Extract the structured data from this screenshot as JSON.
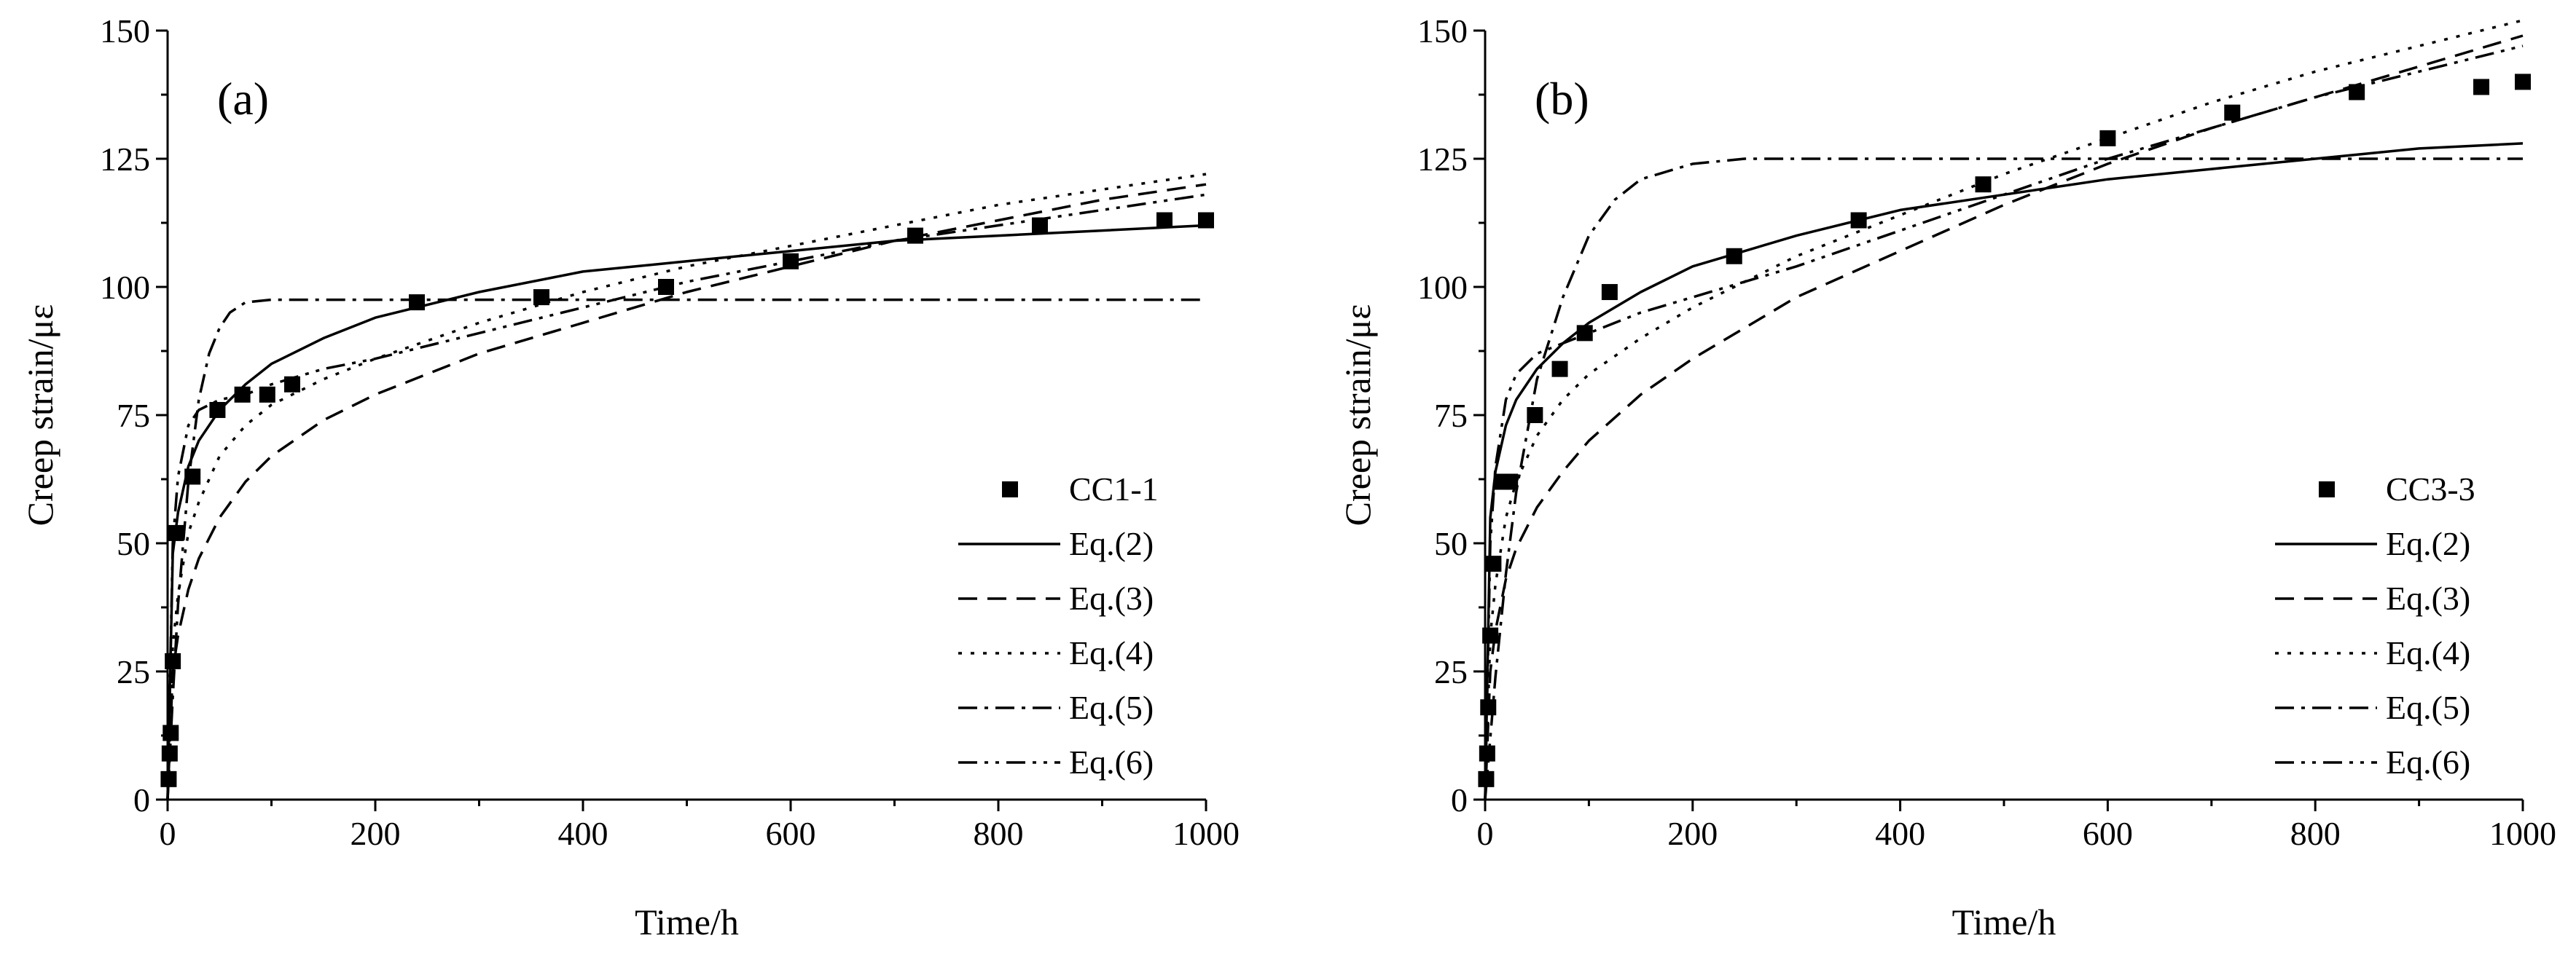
{
  "figure": {
    "description_free": true
  },
  "chart_data": [
    {
      "type": "scatter",
      "panel_label": "(a)",
      "xlabel": "Time/h",
      "ylabel": "Creep strain/με",
      "xlim": [
        0,
        1000
      ],
      "ylim": [
        0,
        150
      ],
      "xticks": [
        "0",
        "200",
        "400",
        "600",
        "800",
        "1000"
      ],
      "yticks": [
        "0",
        "25",
        "50",
        "75",
        "100",
        "125",
        "150"
      ],
      "legend_position": "bottom-right",
      "grid": false,
      "points": {
        "name": "CC1-1",
        "x": [
          1,
          2,
          3,
          5,
          8,
          24,
          48,
          72,
          96,
          120,
          240,
          360,
          480,
          600,
          720,
          840,
          960,
          1000
        ],
        "y": [
          4,
          9,
          13,
          27,
          52,
          63,
          76,
          79,
          79,
          81,
          97,
          98,
          100,
          105,
          110,
          112,
          113,
          113
        ]
      },
      "series": [
        {
          "name": "Eq.(2)",
          "style": "solid",
          "x": [
            0,
            5,
            10,
            20,
            30,
            50,
            75,
            100,
            150,
            200,
            300,
            400,
            500,
            600,
            700,
            800,
            900,
            1000
          ],
          "y": [
            0,
            48,
            56,
            65,
            70,
            76,
            81,
            85,
            90,
            94,
            99,
            103,
            105,
            107,
            109,
            110,
            111,
            112
          ]
        },
        {
          "name": "Eq.(3)",
          "style": "dashed",
          "x": [
            0,
            5,
            10,
            20,
            30,
            50,
            75,
            100,
            150,
            200,
            300,
            400,
            500,
            600,
            700,
            800,
            900,
            1000
          ],
          "y": [
            0,
            25,
            32,
            41,
            47,
            55,
            62,
            67,
            74,
            79,
            87,
            93,
            99,
            104,
            109,
            113,
            117,
            120
          ]
        },
        {
          "name": "Eq.(4)",
          "style": "dotted",
          "x": [
            0,
            5,
            10,
            20,
            30,
            50,
            75,
            100,
            150,
            200,
            300,
            400,
            500,
            600,
            700,
            800,
            900,
            1000
          ],
          "y": [
            0,
            30,
            40,
            52,
            58,
            67,
            73,
            77,
            82,
            86,
            93,
            99,
            104,
            108,
            112,
            116,
            119,
            122
          ]
        },
        {
          "name": "Eq.(5)",
          "style": "dash-dot",
          "x": [
            0,
            5,
            10,
            20,
            30,
            40,
            50,
            60,
            75,
            100,
            150,
            200,
            300,
            400,
            600,
            800,
            1000
          ],
          "y": [
            0,
            20,
            38,
            62,
            78,
            87,
            92,
            95,
            97,
            97.5,
            97.5,
            97.5,
            97.5,
            97.5,
            97.5,
            97.5,
            97.5
          ]
        },
        {
          "name": "Eq.(6)",
          "style": "dash-dot-dot",
          "x": [
            0,
            5,
            10,
            20,
            30,
            50,
            75,
            100,
            150,
            200,
            300,
            400,
            500,
            600,
            700,
            800,
            900,
            1000
          ],
          "y": [
            0,
            50,
            63,
            73,
            76,
            78,
            79,
            81,
            84,
            86,
            91,
            96,
            101,
            105,
            109,
            112,
            115,
            118
          ]
        }
      ]
    },
    {
      "type": "scatter",
      "panel_label": "(b)",
      "xlabel": "Time/h",
      "ylabel": "Creep strain/με",
      "xlim": [
        0,
        1000
      ],
      "ylim": [
        0,
        150
      ],
      "xticks": [
        "0",
        "200",
        "400",
        "600",
        "800",
        "1000"
      ],
      "yticks": [
        "0",
        "25",
        "50",
        "75",
        "100",
        "125",
        "150"
      ],
      "legend_position": "bottom-right",
      "grid": false,
      "points": {
        "name": "CC3-3",
        "x": [
          1,
          2,
          3,
          5,
          8,
          16,
          24,
          48,
          72,
          96,
          120,
          240,
          360,
          480,
          600,
          720,
          840,
          960,
          1000
        ],
        "y": [
          4,
          9,
          18,
          32,
          46,
          62,
          62,
          75,
          84,
          91,
          99,
          106,
          113,
          120,
          129,
          134,
          138,
          139,
          140
        ]
      },
      "series": [
        {
          "name": "Eq.(2)",
          "style": "solid",
          "x": [
            0,
            5,
            10,
            20,
            30,
            50,
            75,
            100,
            150,
            200,
            300,
            400,
            500,
            600,
            700,
            800,
            900,
            1000
          ],
          "y": [
            0,
            55,
            64,
            73,
            78,
            84,
            89,
            93,
            99,
            104,
            110,
            115,
            118,
            121,
            123,
            125,
            127,
            128
          ]
        },
        {
          "name": "Eq.(3)",
          "style": "dashed",
          "x": [
            0,
            5,
            10,
            20,
            30,
            50,
            75,
            100,
            150,
            200,
            300,
            400,
            500,
            600,
            700,
            800,
            900,
            1000
          ],
          "y": [
            0,
            25,
            33,
            43,
            49,
            57,
            64,
            70,
            79,
            86,
            98,
            107,
            116,
            124,
            131,
            137,
            143,
            149
          ]
        },
        {
          "name": "Eq.(4)",
          "style": "dotted",
          "x": [
            0,
            5,
            10,
            20,
            30,
            50,
            75,
            100,
            150,
            200,
            300,
            400,
            500,
            600,
            700,
            800,
            900,
            1000
          ],
          "y": [
            0,
            32,
            42,
            55,
            62,
            71,
            78,
            83,
            90,
            96,
            106,
            114,
            122,
            129,
            136,
            142,
            147,
            152
          ]
        },
        {
          "name": "Eq.(5)",
          "style": "dash-dot",
          "x": [
            0,
            5,
            10,
            20,
            30,
            50,
            75,
            100,
            125,
            150,
            200,
            250,
            300,
            400,
            600,
            800,
            1000
          ],
          "y": [
            0,
            12,
            24,
            44,
            60,
            82,
            98,
            110,
            117,
            121,
            124,
            125,
            125,
            125,
            125,
            125,
            125
          ]
        },
        {
          "name": "Eq.(6)",
          "style": "dash-dot-dot",
          "x": [
            0,
            5,
            10,
            20,
            30,
            50,
            75,
            100,
            150,
            200,
            300,
            400,
            500,
            600,
            700,
            800,
            900,
            1000
          ],
          "y": [
            0,
            50,
            65,
            78,
            83,
            87,
            89,
            91,
            95,
            98,
            104,
            111,
            118,
            125,
            131,
            137,
            142,
            147
          ]
        }
      ]
    }
  ]
}
